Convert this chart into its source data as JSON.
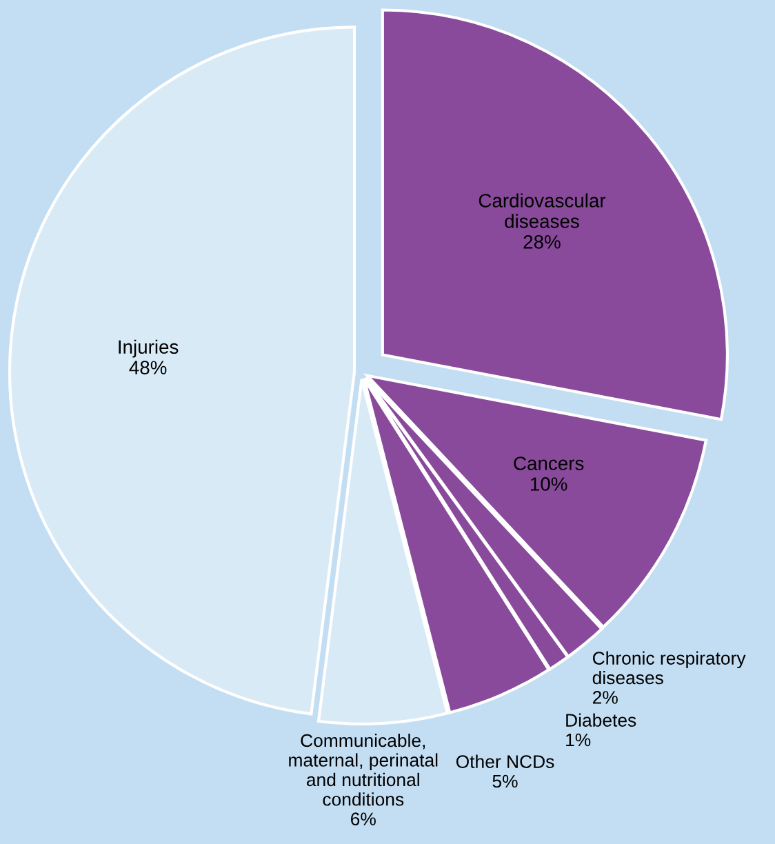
{
  "chart_data": {
    "type": "pie",
    "categories": [
      "Cardiovascular\ndiseases",
      "Cancers",
      "Chronic respiratory\ndiseases",
      "Diabetes",
      "Other NCDs",
      "Communicable,\nmaternal, perinatal\nand nutritional\nconditions",
      "Injuries"
    ],
    "values": [
      28,
      10,
      2,
      1,
      5,
      6,
      48
    ],
    "value_labels": [
      "28%",
      "10%",
      "2%",
      "1%",
      "5%",
      "6%",
      "48%"
    ],
    "colors": [
      "#8a4a9c",
      "#8a4a9c",
      "#8a4a9c",
      "#8a4a9c",
      "#8a4a9c",
      "#d9eaf7",
      "#d9eaf7"
    ]
  }
}
